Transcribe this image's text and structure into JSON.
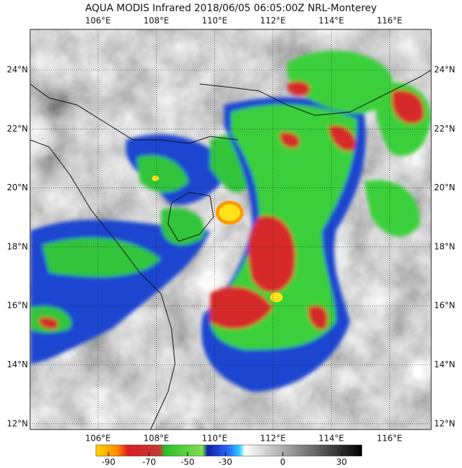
{
  "header": {
    "title": "AQUA MODIS Infrared 2018/06/05 06:05:00Z NRL-Monterey"
  },
  "map": {
    "lon_labels": [
      "106°E",
      "108°E",
      "110°E",
      "112°E",
      "114°E",
      "116°E"
    ],
    "lat_labels": [
      "24°N",
      "22°N",
      "20°N",
      "18°N",
      "16°N",
      "14°N",
      "12°N"
    ]
  },
  "colorbar": {
    "labels": [
      "-90",
      "-70",
      "-50",
      "-30",
      "0",
      "30"
    ]
  }
}
